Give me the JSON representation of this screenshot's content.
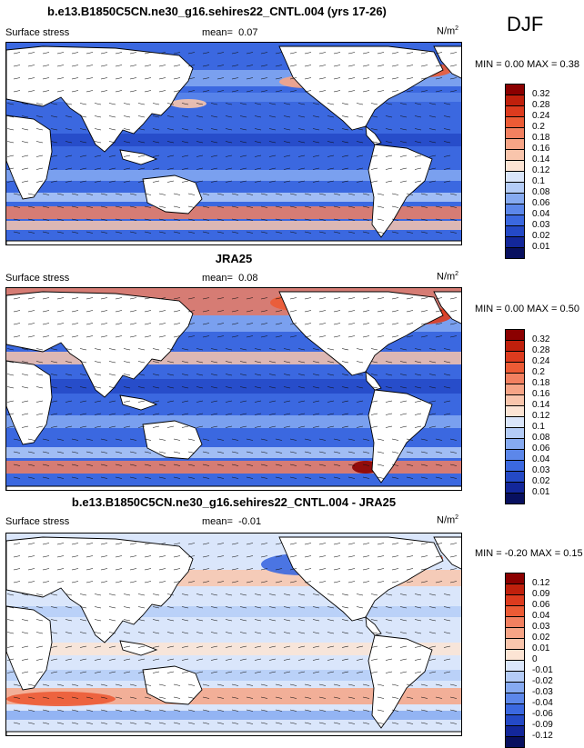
{
  "season": "DJF",
  "panels": [
    {
      "id": "model",
      "title": "b.e13.B1850C5CN.ne30_g16.sehires22_CNTL.004 (yrs 17-26)",
      "variable": "Surface stress",
      "mean_label": "mean=",
      "mean_value": "0.07",
      "units_base": "N/m",
      "units_exp": "2",
      "minmax": "MIN =  0.00 MAX =  0.38",
      "colorbar_labels": [
        "0.32",
        "0.28",
        "0.24",
        "0.2",
        "0.18",
        "0.16",
        "0.14",
        "0.12",
        "0.1",
        "0.08",
        "0.06",
        "0.04",
        "0.03",
        "0.02",
        "0.01"
      ],
      "colorbar_colors": [
        "#8b0000",
        "#c0200c",
        "#dd3b1e",
        "#ec5b35",
        "#f28060",
        "#f6a486",
        "#f9c5ac",
        "#fce4d4",
        "#dae6fb",
        "#b4ccf7",
        "#86aaf1",
        "#5c87ea",
        "#3b68e0",
        "#2449c6",
        "#13279a",
        "#08105f"
      ]
    },
    {
      "id": "obs",
      "title": "JRA25",
      "variable": "Surface stress",
      "mean_label": "mean=",
      "mean_value": "0.08",
      "units_base": "N/m",
      "units_exp": "2",
      "minmax": "MIN =  0.00 MAX =  0.50",
      "colorbar_labels": [
        "0.32",
        "0.28",
        "0.24",
        "0.2",
        "0.18",
        "0.16",
        "0.14",
        "0.12",
        "0.1",
        "0.08",
        "0.06",
        "0.04",
        "0.03",
        "0.02",
        "0.01"
      ],
      "colorbar_colors": [
        "#8b0000",
        "#c0200c",
        "#dd3b1e",
        "#ec5b35",
        "#f28060",
        "#f6a486",
        "#f9c5ac",
        "#fce4d4",
        "#dae6fb",
        "#b4ccf7",
        "#86aaf1",
        "#5c87ea",
        "#3b68e0",
        "#2449c6",
        "#13279a",
        "#08105f"
      ]
    },
    {
      "id": "diff",
      "title": "b.e13.B1850C5CN.ne30_g16.sehires22_CNTL.004 - JRA25",
      "variable": "Surface stress",
      "mean_label": "mean=",
      "mean_value": "-0.01",
      "units_base": "N/m",
      "units_exp": "2",
      "minmax": "MIN = -0.20 MAX =  0.15",
      "colorbar_labels": [
        "0.12",
        "0.09",
        "0.06",
        "0.04",
        "0.03",
        "0.02",
        "0.01",
        "0",
        "-0.01",
        "-0.02",
        "-0.03",
        "-0.04",
        "-0.06",
        "-0.09",
        "-0.12"
      ],
      "colorbar_colors": [
        "#8b0000",
        "#c0200c",
        "#dd3b1e",
        "#ec5b35",
        "#f28060",
        "#f6a486",
        "#f9c5ac",
        "#fce4d4",
        "#dae6fb",
        "#b4ccf7",
        "#86aaf1",
        "#5c87ea",
        "#3b68e0",
        "#2449c6",
        "#13279a",
        "#08105f"
      ]
    }
  ]
}
